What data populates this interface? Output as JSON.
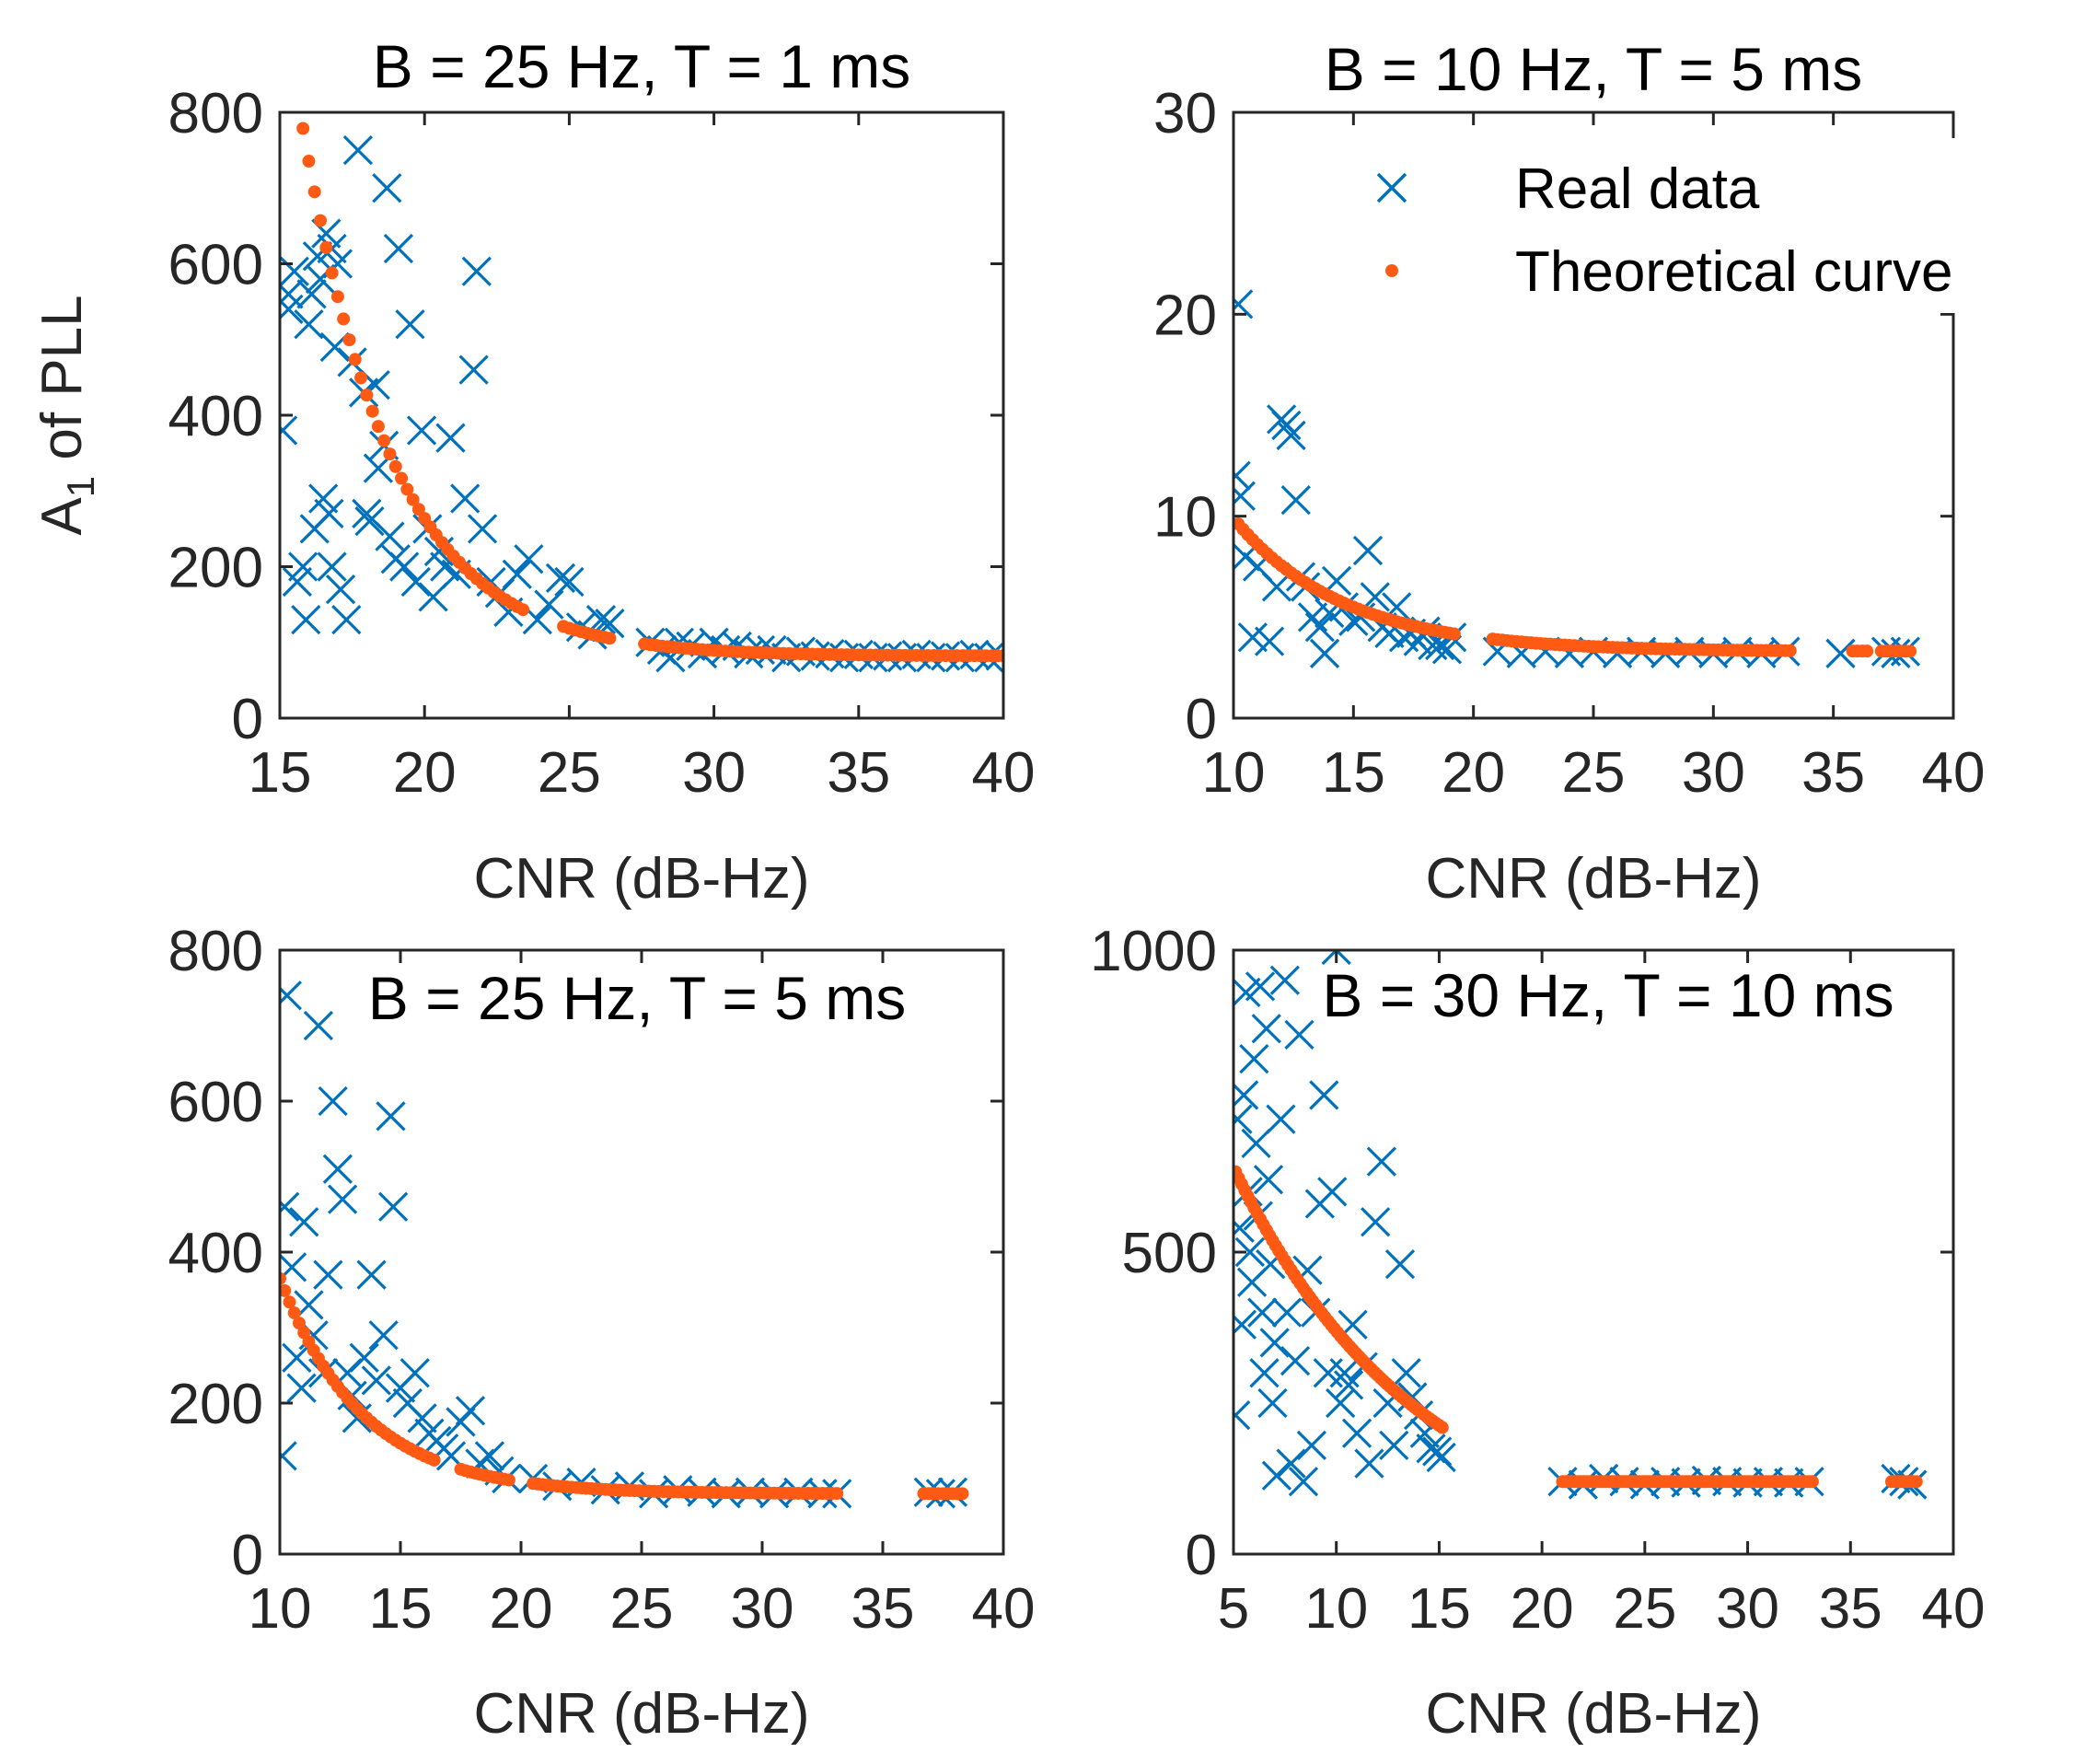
{
  "colors": {
    "real": "#0072BD",
    "theory": "#FF5A14",
    "axis": "#262626"
  },
  "legend": {
    "real_label": "Real data",
    "theory_label": "Theoretical curve",
    "placement": "top-right of panel 2"
  },
  "chart_data": [
    {
      "type": "scatter",
      "title": "B = 25 Hz, T = 1 ms",
      "xlabel": "CNR (dB-Hz)",
      "ylabel": "A1 of PLL",
      "xlim": [
        15,
        40
      ],
      "ylim": [
        0,
        800
      ],
      "xticks": [
        15,
        20,
        25,
        30,
        35,
        40
      ],
      "yticks": [
        0,
        200,
        400,
        600,
        800
      ],
      "xtick_labels": [
        "15",
        "20",
        "25",
        "30",
        "35",
        "40"
      ],
      "ytick_labels": [
        "0",
        "200",
        "400",
        "600",
        "800"
      ],
      "theory": {
        "a": 900,
        "b": 0.32,
        "c": 82,
        "x0": 15,
        "x1": 40,
        "segments": [
          [
            15,
            23.5
          ],
          [
            24.8,
            26.4
          ],
          [
            27.6,
            40
          ]
        ],
        "step": 0.2
      },
      "real": [
        [
          15.1,
          380
        ],
        [
          15.3,
          540
        ],
        [
          15.5,
          590
        ],
        [
          15.3,
          560
        ],
        [
          15.6,
          180
        ],
        [
          15.8,
          200
        ],
        [
          15.9,
          130
        ],
        [
          16.0,
          520
        ],
        [
          16.1,
          560
        ],
        [
          16.3,
          610
        ],
        [
          16.4,
          580
        ],
        [
          16.6,
          640
        ],
        [
          16.8,
          620
        ],
        [
          16.9,
          490
        ],
        [
          17.0,
          600
        ],
        [
          16.5,
          290
        ],
        [
          16.7,
          270
        ],
        [
          16.2,
          250
        ],
        [
          16.8,
          200
        ],
        [
          17.1,
          170
        ],
        [
          17.3,
          130
        ],
        [
          17.5,
          470
        ],
        [
          17.7,
          750
        ],
        [
          17.9,
          430
        ],
        [
          18.0,
          270
        ],
        [
          18.1,
          260
        ],
        [
          18.3,
          440
        ],
        [
          18.4,
          330
        ],
        [
          18.6,
          360
        ],
        [
          18.7,
          700
        ],
        [
          18.8,
          240
        ],
        [
          19.0,
          210
        ],
        [
          19.1,
          620
        ],
        [
          19.3,
          200
        ],
        [
          19.5,
          520
        ],
        [
          19.7,
          180
        ],
        [
          19.9,
          380
        ],
        [
          20.1,
          250
        ],
        [
          20.3,
          160
        ],
        [
          20.5,
          220
        ],
        [
          20.7,
          200
        ],
        [
          20.9,
          370
        ],
        [
          21.1,
          190
        ],
        [
          21.4,
          290
        ],
        [
          21.8,
          590
        ],
        [
          21.7,
          460
        ],
        [
          22.0,
          250
        ],
        [
          22.3,
          180
        ],
        [
          22.6,
          165
        ],
        [
          22.9,
          140
        ],
        [
          23.2,
          190
        ],
        [
          23.6,
          210
        ],
        [
          23.9,
          130
        ],
        [
          24.3,
          150
        ],
        [
          24.7,
          185
        ],
        [
          25.0,
          180
        ],
        [
          25.4,
          120
        ],
        [
          25.8,
          110
        ],
        [
          26.1,
          130
        ],
        [
          26.4,
          125
        ],
        [
          27.8,
          100
        ],
        [
          28.2,
          90
        ],
        [
          28.5,
          80
        ],
        [
          28.8,
          100
        ],
        [
          29.2,
          95
        ],
        [
          29.6,
          85
        ],
        [
          30.0,
          100
        ],
        [
          30.4,
          90
        ],
        [
          30.8,
          95
        ],
        [
          31.2,
          85
        ],
        [
          31.6,
          90
        ],
        [
          32.0,
          90
        ],
        [
          32.5,
          80
        ],
        [
          33.0,
          88
        ],
        [
          33.5,
          82
        ],
        [
          34.0,
          85
        ],
        [
          34.5,
          80
        ],
        [
          35.0,
          84
        ],
        [
          35.5,
          80
        ],
        [
          36.0,
          82
        ],
        [
          36.5,
          80
        ],
        [
          37.0,
          84
        ],
        [
          37.5,
          80
        ],
        [
          38.0,
          82
        ],
        [
          38.5,
          80
        ],
        [
          39.0,
          84
        ],
        [
          39.5,
          80
        ],
        [
          39.9,
          82
        ]
      ]
    },
    {
      "type": "scatter",
      "title": "B = 10 Hz, T = 5 ms",
      "xlabel": "CNR (dB-Hz)",
      "ylabel": "",
      "xlim": [
        10,
        40
      ],
      "ylim": [
        0,
        30
      ],
      "xticks": [
        10,
        15,
        20,
        25,
        30,
        35,
        40
      ],
      "yticks": [
        0,
        10,
        20,
        30
      ],
      "xtick_labels": [
        "10",
        "15",
        "20",
        "25",
        "30",
        "35",
        "40"
      ],
      "ytick_labels": [
        "0",
        "10",
        "20",
        "30"
      ],
      "theory": {
        "a": 6.6,
        "b": 0.22,
        "c": 3.3,
        "x0": 10,
        "x1": 40,
        "segments": [
          [
            10.2,
            19.2
          ],
          [
            20.8,
            33.2
          ],
          [
            35.8,
            36.5
          ],
          [
            37.0,
            38.2
          ]
        ],
        "step": 0.2
      },
      "real": [
        [
          10.1,
          12.0
        ],
        [
          10.2,
          20.5
        ],
        [
          10.3,
          11.0
        ],
        [
          10.5,
          8.0
        ],
        [
          10.8,
          4.0
        ],
        [
          11.0,
          7.5
        ],
        [
          11.5,
          3.8
        ],
        [
          11.8,
          6.5
        ],
        [
          12.0,
          14.8
        ],
        [
          12.2,
          14.5
        ],
        [
          12.4,
          14.0
        ],
        [
          12.6,
          10.8
        ],
        [
          12.8,
          7.0
        ],
        [
          13.0,
          6.5
        ],
        [
          13.3,
          5.0
        ],
        [
          13.6,
          4.5
        ],
        [
          13.8,
          3.2
        ],
        [
          14.0,
          5.2
        ],
        [
          14.3,
          6.8
        ],
        [
          14.6,
          5.5
        ],
        [
          15.0,
          4.8
        ],
        [
          15.3,
          5.0
        ],
        [
          15.6,
          8.3
        ],
        [
          15.9,
          6.0
        ],
        [
          16.2,
          4.5
        ],
        [
          16.5,
          4.2
        ],
        [
          16.8,
          5.5
        ],
        [
          17.1,
          4.0
        ],
        [
          17.4,
          4.2
        ],
        [
          17.7,
          3.8
        ],
        [
          18.0,
          4.3
        ],
        [
          18.3,
          3.6
        ],
        [
          18.6,
          3.6
        ],
        [
          18.9,
          3.4
        ],
        [
          19.1,
          4.0
        ],
        [
          21.0,
          3.3
        ],
        [
          22.0,
          3.2
        ],
        [
          23.0,
          3.3
        ],
        [
          24.0,
          3.2
        ],
        [
          25.0,
          3.3
        ],
        [
          26.0,
          3.2
        ],
        [
          27.0,
          3.3
        ],
        [
          28.0,
          3.2
        ],
        [
          29.0,
          3.3
        ],
        [
          30.0,
          3.2
        ],
        [
          31.0,
          3.3
        ],
        [
          32.0,
          3.2
        ],
        [
          33.0,
          3.3
        ],
        [
          35.3,
          3.2
        ],
        [
          37.2,
          3.3
        ],
        [
          37.6,
          3.2
        ],
        [
          38.0,
          3.3
        ]
      ]
    },
    {
      "type": "scatter",
      "title": "B = 25 Hz, T = 5 ms",
      "xlabel": "CNR (dB-Hz)",
      "ylabel": "",
      "xlim": [
        10,
        40
      ],
      "ylim": [
        0,
        800
      ],
      "xticks": [
        10,
        15,
        20,
        25,
        30,
        35,
        40
      ],
      "yticks": [
        0,
        200,
        400,
        600,
        800
      ],
      "xtick_labels": [
        "10",
        "15",
        "20",
        "25",
        "30",
        "35",
        "40"
      ],
      "ytick_labels": [
        "0",
        "200",
        "400",
        "600",
        "800"
      ],
      "theory": {
        "a": 285,
        "b": 0.29,
        "c": 80,
        "x0": 10,
        "x1": 40,
        "segments": [
          [
            10.0,
            16.5
          ],
          [
            17.5,
            19.5
          ],
          [
            20.5,
            33.2
          ],
          [
            36.7,
            38.3
          ]
        ],
        "step": 0.2
      },
      "real": [
        [
          10.1,
          130
        ],
        [
          10.2,
          460
        ],
        [
          10.3,
          740
        ],
        [
          10.5,
          380
        ],
        [
          10.7,
          260
        ],
        [
          10.9,
          220
        ],
        [
          11.0,
          440
        ],
        [
          11.2,
          330
        ],
        [
          11.4,
          290
        ],
        [
          11.6,
          700
        ],
        [
          11.8,
          240
        ],
        [
          12.0,
          370
        ],
        [
          12.2,
          600
        ],
        [
          12.4,
          510
        ],
        [
          12.6,
          470
        ],
        [
          12.8,
          240
        ],
        [
          13.0,
          210
        ],
        [
          13.2,
          180
        ],
        [
          13.5,
          260
        ],
        [
          13.8,
          370
        ],
        [
          14.0,
          230
        ],
        [
          14.3,
          290
        ],
        [
          14.6,
          580
        ],
        [
          14.7,
          460
        ],
        [
          15.0,
          220
        ],
        [
          15.3,
          200
        ],
        [
          15.6,
          240
        ],
        [
          15.9,
          180
        ],
        [
          16.2,
          160
        ],
        [
          16.5,
          150
        ],
        [
          16.8,
          140
        ],
        [
          17.1,
          130
        ],
        [
          17.5,
          175
        ],
        [
          17.9,
          190
        ],
        [
          18.3,
          120
        ],
        [
          18.7,
          130
        ],
        [
          19.1,
          110
        ],
        [
          19.4,
          100
        ],
        [
          20.5,
          100
        ],
        [
          21.5,
          90
        ],
        [
          22.5,
          95
        ],
        [
          23.5,
          85
        ],
        [
          24.5,
          90
        ],
        [
          25.5,
          80
        ],
        [
          26.5,
          85
        ],
        [
          27.5,
          82
        ],
        [
          28.5,
          80
        ],
        [
          29.5,
          82
        ],
        [
          30.5,
          80
        ],
        [
          31.5,
          82
        ],
        [
          32.5,
          80
        ],
        [
          33.1,
          80
        ],
        [
          36.9,
          82
        ],
        [
          37.4,
          80
        ],
        [
          37.9,
          82
        ]
      ]
    },
    {
      "type": "scatter",
      "title": "B = 30 Hz, T = 10 ms",
      "xlabel": "CNR (dB-Hz)",
      "ylabel": "",
      "xlim": [
        5,
        40
      ],
      "ylim": [
        0,
        1000
      ],
      "xticks": [
        5,
        10,
        15,
        20,
        25,
        30,
        35,
        40
      ],
      "yticks": [
        0,
        500,
        1000
      ],
      "xtick_labels": [
        "5",
        "10",
        "15",
        "20",
        "25",
        "30",
        "35",
        "40"
      ],
      "ytick_labels": [
        "0",
        "500",
        "1000"
      ],
      "theory": {
        "a": 640,
        "b": 0.11,
        "c": 0,
        "x0": 5,
        "x1": 15.2,
        "segments": [
          [
            5.1,
            15.2
          ]
        ],
        "step": 0.15,
        "flat": [
          {
            "x0": 21.0,
            "x1": 33.2,
            "y": 120
          },
          {
            "x0": 37.0,
            "x1": 38.3,
            "y": 120
          }
        ]
      },
      "real": [
        [
          5.1,
          230
        ],
        [
          5.2,
          720
        ],
        [
          5.3,
          540
        ],
        [
          5.4,
          380
        ],
        [
          5.5,
          760
        ],
        [
          5.6,
          930
        ],
        [
          5.7,
          600
        ],
        [
          5.8,
          500
        ],
        [
          5.9,
          450
        ],
        [
          6.0,
          820
        ],
        [
          6.1,
          680
        ],
        [
          6.2,
          560
        ],
        [
          6.3,
          940
        ],
        [
          6.4,
          400
        ],
        [
          6.5,
          300
        ],
        [
          6.6,
          870
        ],
        [
          6.7,
          620
        ],
        [
          6.8,
          480
        ],
        [
          6.9,
          250
        ],
        [
          7.0,
          350
        ],
        [
          7.1,
          130
        ],
        [
          7.3,
          720
        ],
        [
          7.5,
          950
        ],
        [
          7.6,
          400
        ],
        [
          7.8,
          150
        ],
        [
          8.0,
          320
        ],
        [
          8.2,
          860
        ],
        [
          8.4,
          120
        ],
        [
          8.6,
          470
        ],
        [
          8.8,
          180
        ],
        [
          9.0,
          400
        ],
        [
          9.2,
          580
        ],
        [
          9.4,
          760
        ],
        [
          9.6,
          300
        ],
        [
          9.8,
          600
        ],
        [
          10.0,
          1000
        ],
        [
          10.2,
          250
        ],
        [
          10.4,
          300
        ],
        [
          10.6,
          280
        ],
        [
          10.8,
          380
        ],
        [
          11.0,
          200
        ],
        [
          11.3,
          310
        ],
        [
          11.6,
          150
        ],
        [
          11.9,
          550
        ],
        [
          12.2,
          650
        ],
        [
          12.5,
          250
        ],
        [
          12.8,
          180
        ],
        [
          13.1,
          480
        ],
        [
          13.4,
          300
        ],
        [
          13.7,
          260
        ],
        [
          14.0,
          230
        ],
        [
          14.3,
          200
        ],
        [
          14.6,
          175
        ],
        [
          14.9,
          170
        ],
        [
          15.1,
          160
        ],
        [
          21.0,
          120
        ],
        [
          22.0,
          115
        ],
        [
          23.0,
          125
        ],
        [
          24.0,
          120
        ],
        [
          25.0,
          115
        ],
        [
          26.0,
          120
        ],
        [
          27.0,
          118
        ],
        [
          28.0,
          122
        ],
        [
          29.0,
          120
        ],
        [
          30.0,
          118
        ],
        [
          31.0,
          120
        ],
        [
          32.0,
          118
        ],
        [
          33.0,
          120
        ],
        [
          37.2,
          125
        ],
        [
          37.6,
          120
        ],
        [
          38.0,
          115
        ]
      ]
    }
  ]
}
